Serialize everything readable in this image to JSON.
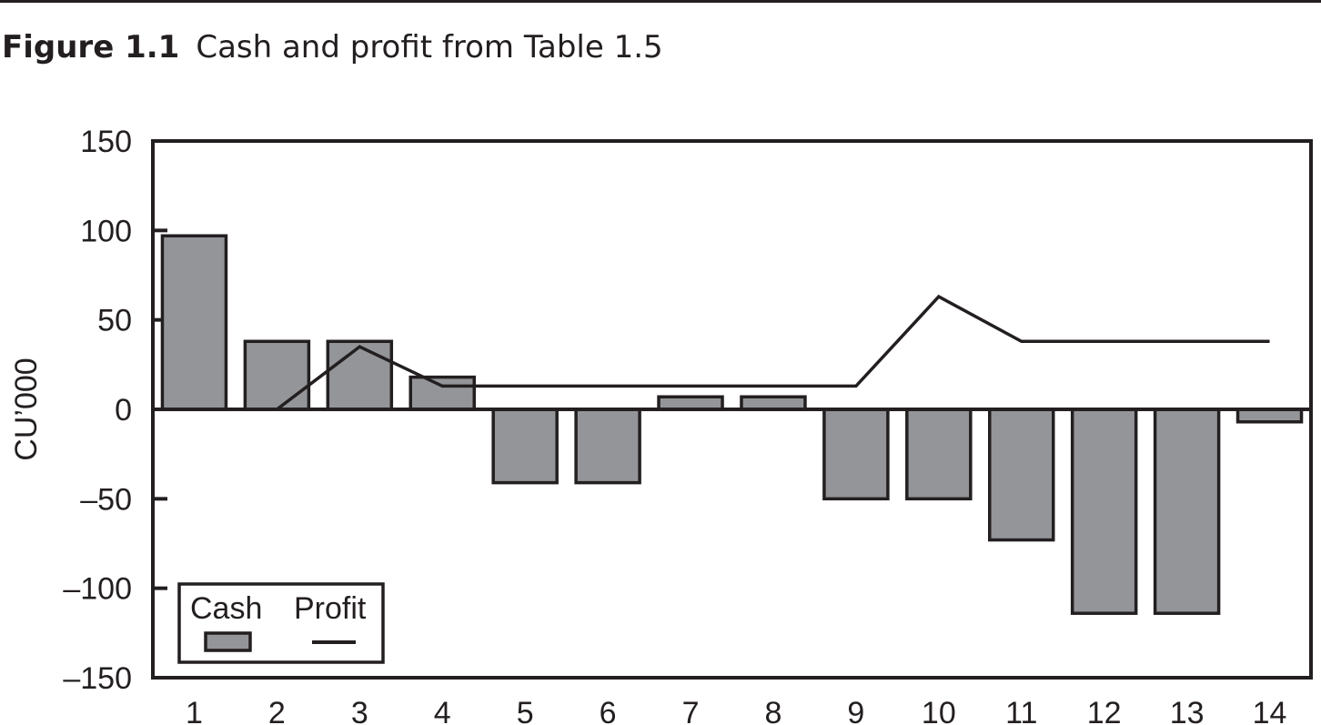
{
  "figure": {
    "label": "Figure 1.1",
    "caption": "Cash and profit from Table 1.5"
  },
  "chart_data": {
    "type": "bar",
    "title": "",
    "xlabel": "",
    "ylabel": "CU’000",
    "ylim": [
      -150,
      150
    ],
    "yticks": [
      150,
      100,
      50,
      0,
      -50,
      -100,
      -150
    ],
    "ytick_labels": [
      "150",
      "100",
      "50",
      "0",
      "–50",
      "–100",
      "–150"
    ],
    "categories": [
      "1",
      "2",
      "3",
      "4",
      "5",
      "6",
      "7",
      "8",
      "9",
      "10",
      "11",
      "12",
      "13",
      "14"
    ],
    "series": [
      {
        "name": "Cash",
        "kind": "bar",
        "color": "#939598",
        "values": [
          97,
          38,
          38,
          18,
          -41,
          -41,
          7,
          7,
          -50,
          -50,
          -73,
          -114,
          -114,
          -7
        ]
      },
      {
        "name": "Profit",
        "kind": "line",
        "color": "#231f20",
        "values": [
          null,
          0,
          35,
          13,
          13,
          13,
          13,
          13,
          13,
          63,
          38,
          38,
          38,
          38
        ]
      }
    ],
    "legend": {
      "position": "bottom-left",
      "entries": [
        "Cash",
        "Profit"
      ]
    },
    "grid": false
  }
}
